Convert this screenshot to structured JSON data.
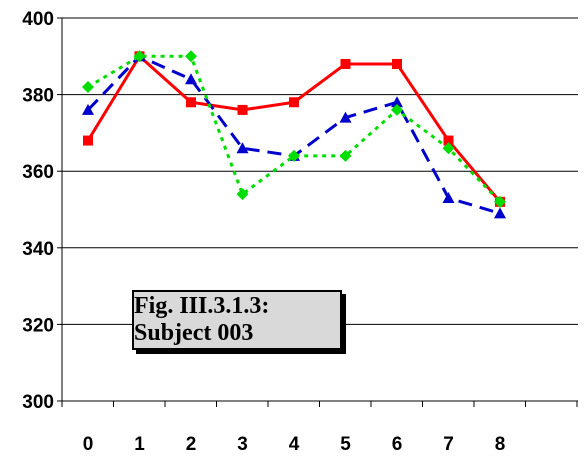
{
  "chart_data": {
    "type": "line",
    "caption": "Fig. III.3.1.3: Subject 003",
    "x": [
      0,
      1,
      2,
      3,
      4,
      5,
      6,
      7,
      8
    ],
    "x_tick_labels": [
      "0",
      "1",
      "2",
      "3",
      "4",
      "5",
      "6",
      "7",
      "8"
    ],
    "y_tick_labels": [
      "300",
      "320",
      "340",
      "360",
      "380",
      "400"
    ],
    "ylim": [
      300,
      400
    ],
    "grid": true,
    "series": [
      {
        "color": "#ff0000",
        "line_style": "solid",
        "marker": "square",
        "values": [
          368,
          390,
          378,
          376,
          378,
          388,
          388,
          368,
          352
        ]
      },
      {
        "color": "#0000cc",
        "line_style": "dashed",
        "marker": "triangle",
        "values": [
          376,
          390,
          384,
          366,
          364,
          374,
          378,
          353,
          349
        ]
      },
      {
        "color": "#00dd00",
        "line_style": "dotted",
        "marker": "diamond",
        "values": [
          382,
          390,
          390,
          354,
          364,
          364,
          376,
          366,
          352
        ]
      }
    ]
  }
}
